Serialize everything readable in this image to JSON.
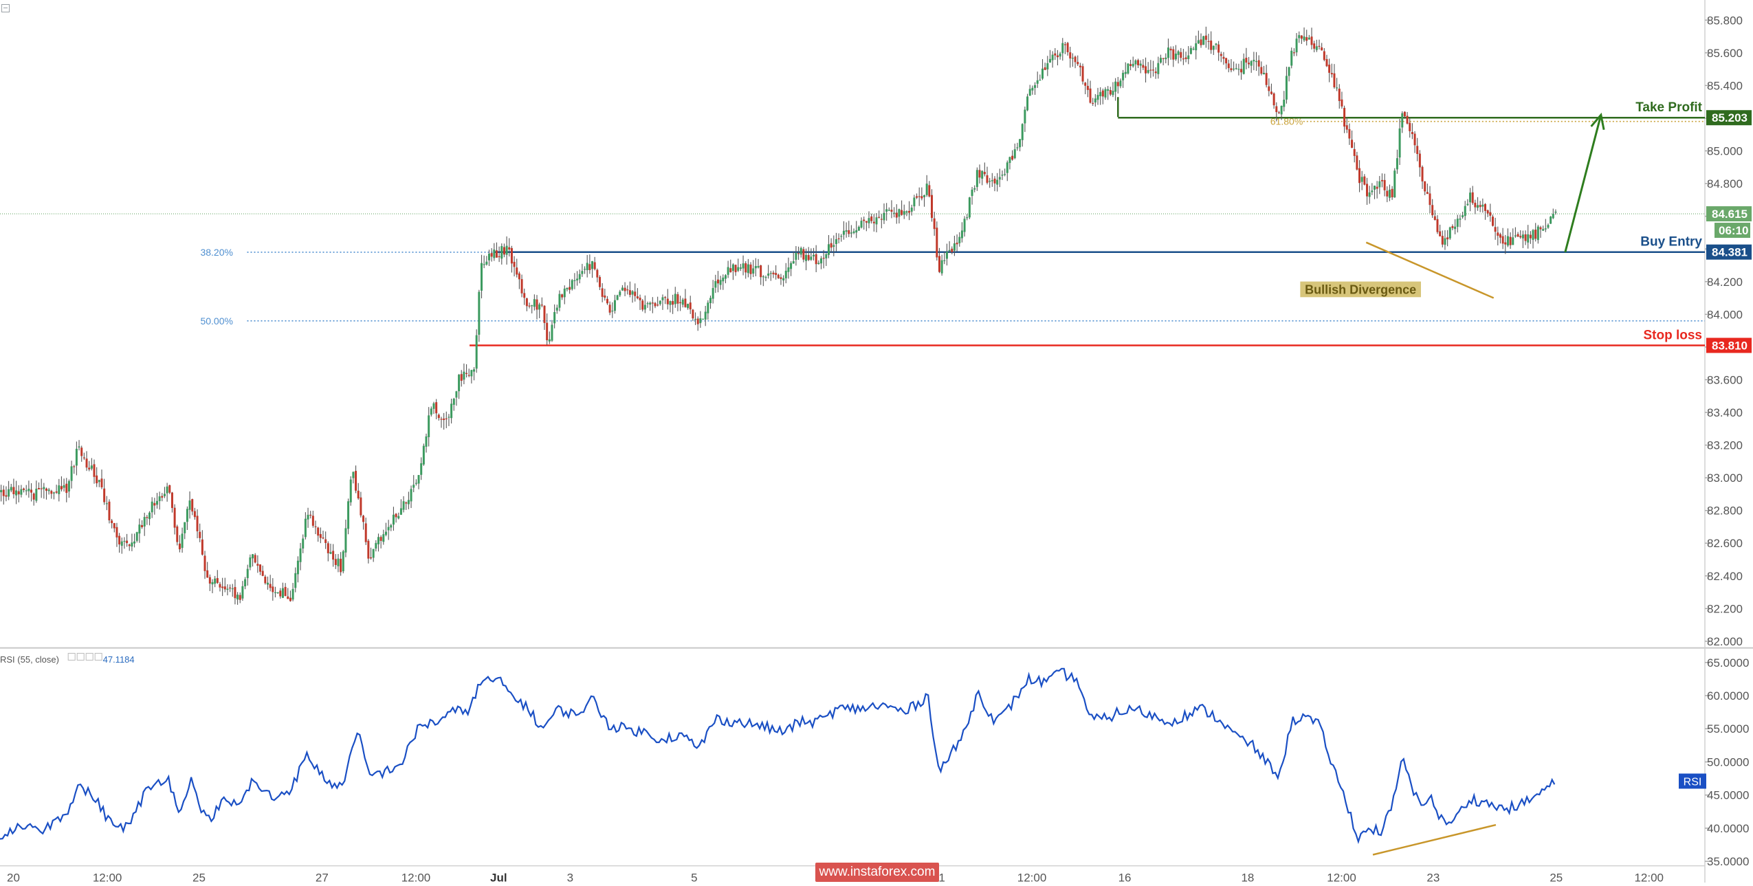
{
  "chart_data": [
    {
      "type": "candlestick",
      "title": "",
      "ylim": [
        82.0,
        85.9
      ],
      "price_ticks": [
        "85.800",
        "85.600",
        "85.400",
        "85.200",
        "85.000",
        "84.800",
        "84.600",
        "84.400",
        "84.200",
        "84.000",
        "83.800",
        "83.600",
        "83.400",
        "83.200",
        "83.000",
        "82.800",
        "82.600",
        "82.400",
        "82.200",
        "82.000"
      ],
      "date_ticks": [
        "20",
        "12:00",
        "25",
        "27",
        "12:00",
        "Jul",
        "3",
        "5",
        "11",
        "12:00",
        "16",
        "18",
        "12:00",
        "23",
        "25",
        "12:00"
      ],
      "date_ticks_bold": [
        "Jul"
      ],
      "path_anchors": [
        [
          0,
          82.92
        ],
        [
          30,
          82.9
        ],
        [
          60,
          82.94
        ],
        [
          70,
          83.18
        ],
        [
          90,
          82.95
        ],
        [
          105,
          82.6
        ],
        [
          120,
          82.62
        ],
        [
          135,
          82.82
        ],
        [
          150,
          82.95
        ],
        [
          160,
          82.55
        ],
        [
          170,
          82.88
        ],
        [
          185,
          82.4
        ],
        [
          200,
          82.32
        ],
        [
          215,
          82.28
        ],
        [
          225,
          82.55
        ],
        [
          240,
          82.32
        ],
        [
          260,
          82.28
        ],
        [
          275,
          82.8
        ],
        [
          290,
          82.6
        ],
        [
          305,
          82.45
        ],
        [
          315,
          83.05
        ],
        [
          330,
          82.52
        ],
        [
          345,
          82.7
        ],
        [
          360,
          82.82
        ],
        [
          375,
          83.0
        ],
        [
          385,
          83.45
        ],
        [
          400,
          83.35
        ],
        [
          410,
          83.6
        ],
        [
          425,
          83.68
        ],
        [
          430,
          84.32
        ],
        [
          445,
          84.38
        ],
        [
          455,
          84.4
        ],
        [
          470,
          84.08
        ],
        [
          485,
          84.05
        ],
        [
          490,
          83.82
        ],
        [
          500,
          84.1
        ],
        [
          515,
          84.2
        ],
        [
          530,
          84.32
        ],
        [
          545,
          84.0
        ],
        [
          560,
          84.18
        ],
        [
          575,
          84.05
        ],
        [
          590,
          84.08
        ],
        [
          610,
          84.1
        ],
        [
          625,
          83.92
        ],
        [
          640,
          84.2
        ],
        [
          660,
          84.3
        ],
        [
          680,
          84.26
        ],
        [
          700,
          84.22
        ],
        [
          715,
          84.38
        ],
        [
          730,
          84.32
        ],
        [
          750,
          84.46
        ],
        [
          765,
          84.52
        ],
        [
          790,
          84.62
        ],
        [
          810,
          84.62
        ],
        [
          830,
          84.78
        ],
        [
          840,
          84.28
        ],
        [
          860,
          84.5
        ],
        [
          875,
          84.88
        ],
        [
          890,
          84.78
        ],
        [
          900,
          84.9
        ],
        [
          910,
          85.0
        ],
        [
          920,
          85.36
        ],
        [
          935,
          85.5
        ],
        [
          950,
          85.64
        ],
        [
          965,
          85.52
        ],
        [
          975,
          85.3
        ],
        [
          990,
          85.35
        ],
        [
          1000,
          85.42
        ],
        [
          1015,
          85.58
        ],
        [
          1030,
          85.46
        ],
        [
          1045,
          85.6
        ],
        [
          1060,
          85.56
        ],
        [
          1075,
          85.68
        ],
        [
          1090,
          85.62
        ],
        [
          1105,
          85.48
        ],
        [
          1120,
          85.58
        ],
        [
          1135,
          85.4
        ],
        [
          1145,
          85.2
        ],
        [
          1155,
          85.6
        ],
        [
          1165,
          85.72
        ],
        [
          1180,
          85.62
        ],
        [
          1195,
          85.4
        ],
        [
          1205,
          85.1
        ],
        [
          1215,
          84.85
        ],
        [
          1225,
          84.72
        ],
        [
          1235,
          84.8
        ],
        [
          1245,
          84.72
        ],
        [
          1255,
          85.28
        ],
        [
          1262,
          85.1
        ],
        [
          1270,
          84.9
        ],
        [
          1280,
          84.62
        ],
        [
          1290,
          84.45
        ],
        [
          1300,
          84.52
        ],
        [
          1315,
          84.72
        ],
        [
          1325,
          84.65
        ],
        [
          1335,
          84.55
        ],
        [
          1345,
          84.44
        ],
        [
          1360,
          84.46
        ],
        [
          1375,
          84.5
        ],
        [
          1392,
          84.62
        ]
      ],
      "levels": [
        {
          "label": "Take Profit",
          "value": "85.203",
          "color": "#2f6b1e",
          "style": "solid"
        },
        {
          "label": "Buy Entry",
          "value": "84.381",
          "color": "#1a4f8a",
          "style": "solid"
        },
        {
          "label": "Stop loss",
          "value": "83.810",
          "color": "#e8281f",
          "style": "solid"
        }
      ],
      "fib_levels": [
        {
          "label": "38.20%",
          "price": 84.38,
          "color": "#4f8fd0"
        },
        {
          "label": "50.00%",
          "price": 83.96,
          "color": "#4f8fd0"
        },
        {
          "label": "61.80%",
          "price": 85.18,
          "color": "#c9a23a"
        }
      ],
      "current_price": {
        "value": "84.615",
        "countdown": "06:10",
        "color": "#6aa86a"
      },
      "annotations": [
        {
          "text": "Bullish Divergence",
          "bg": "#d7c57a",
          "color": "#6a5a12"
        }
      ],
      "divergence_price": [
        [
          1222,
          84.44
        ],
        [
          1336,
          84.1
        ]
      ],
      "arrow": {
        "from": [
          1400,
          84.38
        ],
        "to": [
          1432,
          85.22
        ],
        "color": "#2e7d1e"
      },
      "take_profit_bracket_start": 1000,
      "colors": {
        "up": "#3c9a5f",
        "down": "#c0392b",
        "wick": "#555555"
      }
    },
    {
      "type": "line",
      "title": "",
      "legend": {
        "name": "RSI (55, close)",
        "value": "47.1184"
      },
      "series_badge": "RSI",
      "ylim": [
        35,
        66
      ],
      "y_ticks": [
        "65.0000",
        "60.0000",
        "55.0000",
        "50.0000",
        "45.0000",
        "40.0000",
        "35.0000"
      ],
      "color": "#1a4fc4",
      "path_anchors": [
        [
          0,
          38.8
        ],
        [
          20,
          40.6
        ],
        [
          40,
          39.8
        ],
        [
          60,
          42.6
        ],
        [
          70,
          46.5
        ],
        [
          85,
          44.5
        ],
        [
          100,
          40.5
        ],
        [
          115,
          40.2
        ],
        [
          130,
          45.5
        ],
        [
          150,
          48
        ],
        [
          160,
          42
        ],
        [
          170,
          47.5
        ],
        [
          185,
          41
        ],
        [
          200,
          44
        ],
        [
          215,
          43.5
        ],
        [
          225,
          47
        ],
        [
          245,
          44.5
        ],
        [
          260,
          46
        ],
        [
          275,
          51
        ],
        [
          290,
          47.5
        ],
        [
          305,
          46
        ],
        [
          320,
          54.5
        ],
        [
          330,
          48
        ],
        [
          345,
          48.5
        ],
        [
          360,
          50
        ],
        [
          375,
          55.5
        ],
        [
          390,
          56
        ],
        [
          405,
          57.5
        ],
        [
          420,
          58
        ],
        [
          430,
          62
        ],
        [
          445,
          62.5
        ],
        [
          455,
          60.5
        ],
        [
          470,
          58.5
        ],
        [
          485,
          55
        ],
        [
          500,
          58
        ],
        [
          515,
          57
        ],
        [
          530,
          59.5
        ],
        [
          545,
          55.5
        ],
        [
          560,
          55
        ],
        [
          575,
          54.5
        ],
        [
          590,
          53.5
        ],
        [
          610,
          54
        ],
        [
          625,
          52
        ],
        [
          640,
          56.5
        ],
        [
          660,
          56
        ],
        [
          680,
          55.5
        ],
        [
          700,
          54.5
        ],
        [
          715,
          56
        ],
        [
          730,
          56
        ],
        [
          750,
          58
        ],
        [
          765,
          58
        ],
        [
          790,
          58.5
        ],
        [
          810,
          57.5
        ],
        [
          830,
          60
        ],
        [
          840,
          48.5
        ],
        [
          860,
          53.5
        ],
        [
          875,
          60.5
        ],
        [
          890,
          56
        ],
        [
          900,
          57.5
        ],
        [
          910,
          60
        ],
        [
          920,
          62.5
        ],
        [
          935,
          62
        ],
        [
          950,
          63.5
        ],
        [
          965,
          62
        ],
        [
          975,
          56.5
        ],
        [
          990,
          56.5
        ],
        [
          1000,
          57.5
        ],
        [
          1015,
          58
        ],
        [
          1030,
          57
        ],
        [
          1045,
          56
        ],
        [
          1060,
          57
        ],
        [
          1075,
          58
        ],
        [
          1090,
          56.5
        ],
        [
          1105,
          54
        ],
        [
          1120,
          52.5
        ],
        [
          1135,
          49.5
        ],
        [
          1145,
          48
        ],
        [
          1155,
          56
        ],
        [
          1165,
          57
        ],
        [
          1180,
          55.5
        ],
        [
          1195,
          48
        ],
        [
          1205,
          43.5
        ],
        [
          1215,
          38.5
        ],
        [
          1225,
          40
        ],
        [
          1235,
          39.5
        ],
        [
          1245,
          43
        ],
        [
          1255,
          51
        ],
        [
          1262,
          46
        ],
        [
          1270,
          44
        ],
        [
          1280,
          44.5
        ],
        [
          1290,
          41
        ],
        [
          1300,
          41
        ],
        [
          1315,
          44.5
        ],
        [
          1325,
          44
        ],
        [
          1335,
          43.5
        ],
        [
          1345,
          42.8
        ],
        [
          1360,
          43.5
        ],
        [
          1375,
          45
        ],
        [
          1392,
          47.1
        ]
      ],
      "divergence_rsi": [
        [
          1228,
          36
        ],
        [
          1338,
          40.5
        ]
      ],
      "divergence_color": "#c8962a"
    }
  ],
  "watermark": {
    "text": "www.instaforex.com"
  }
}
